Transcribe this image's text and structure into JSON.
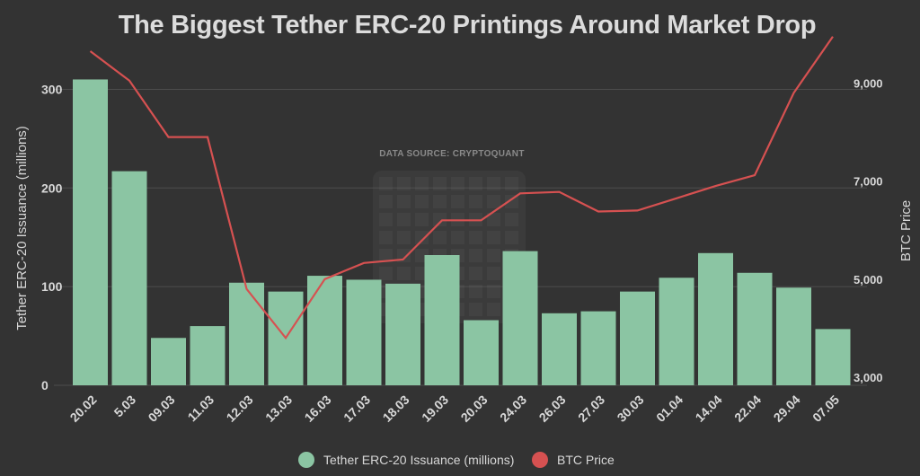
{
  "title": "The Biggest Tether ERC-20 Printings Around Market Drop",
  "watermark": "DATA SOURCE: CRYPTOQUANT",
  "legend": {
    "bars": "Tether ERC-20 Issuance (millions)",
    "line": "BTC Price"
  },
  "colors": {
    "background": "#333333",
    "bars": "#8bc5a3",
    "line": "#d65151"
  },
  "chart_data": {
    "type": "bar",
    "title": "The Biggest Tether ERC-20 Printings Around Market Drop",
    "xlabel": "",
    "ylabel": "Tether ERC-20 Issuance (millions)",
    "y2label": "BTC Price",
    "ylim": [
      0,
      310
    ],
    "y2lim": [
      3000,
      9000
    ],
    "yticks": [
      "0",
      "100",
      "200",
      "300"
    ],
    "y2ticks": [
      "3,000",
      "5,000",
      "7,000",
      "9,000"
    ],
    "categories": [
      "20.02",
      "5.03",
      "09.03",
      "11.03",
      "12.03",
      "13.03",
      "16.03",
      "17.03",
      "18.03",
      "19.03",
      "20.03",
      "24.03",
      "26.03",
      "27.03",
      "30.03",
      "01.04",
      "14.04",
      "22.04",
      "29.04",
      "07.05"
    ],
    "series": [
      {
        "name": "Tether ERC-20 Issuance (millions)",
        "type": "bar",
        "axis": "left",
        "values": [
          310,
          217,
          48,
          60,
          104,
          95,
          111,
          107,
          103,
          132,
          66,
          136,
          73,
          75,
          95,
          109,
          134,
          114,
          99,
          57
        ]
      },
      {
        "name": "BTC Price",
        "type": "line",
        "axis": "right",
        "values": [
          9650,
          9050,
          7900,
          7900,
          4800,
          3800,
          5000,
          5330,
          5400,
          6200,
          6200,
          6750,
          6780,
          6380,
          6400,
          6650,
          6900,
          7120,
          8800,
          9950
        ]
      }
    ],
    "legend_position": "bottom",
    "grid": true
  }
}
